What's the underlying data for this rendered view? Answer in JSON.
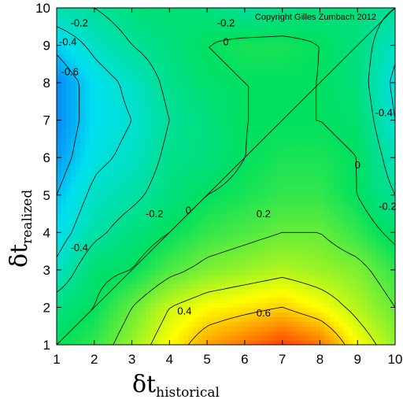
{
  "chart_data": {
    "type": "heatmap",
    "title": "",
    "copyright": "Copyright Gilles Zumbach 2012",
    "xlabel": {
      "symbol": "δt",
      "subscript": "historical"
    },
    "ylabel": {
      "symbol": "δt",
      "subscript": "realized"
    },
    "xlim": [
      1,
      10
    ],
    "ylim": [
      1,
      10
    ],
    "x_ticks": [
      "1",
      "2",
      "3",
      "4",
      "5",
      "6",
      "7",
      "8",
      "9",
      "10"
    ],
    "y_ticks": [
      "1",
      "2",
      "3",
      "4",
      "5",
      "6",
      "7",
      "8",
      "9",
      "10"
    ],
    "colormap": [
      "#1030ff",
      "#00e0f0",
      "#00e060",
      "#ffff00",
      "#ff1000"
    ],
    "color_range": [
      -1.0,
      1.0
    ],
    "x": [
      1,
      2,
      3,
      4,
      5,
      6,
      7,
      8,
      9,
      10
    ],
    "y": [
      1,
      2,
      3,
      4,
      5,
      6,
      7,
      8,
      9,
      10
    ],
    "z": [
      [
        0.0,
        0.1,
        0.3,
        0.5,
        0.7,
        0.8,
        0.9,
        0.8,
        0.5,
        0.3
      ],
      [
        -0.1,
        0.0,
        0.2,
        0.4,
        0.5,
        0.55,
        0.6,
        0.5,
        0.35,
        0.2
      ],
      [
        -0.35,
        -0.05,
        0.0,
        0.15,
        0.25,
        0.3,
        0.35,
        0.3,
        0.25,
        0.1
      ],
      [
        -0.5,
        -0.25,
        -0.1,
        0.0,
        0.1,
        0.15,
        0.2,
        0.2,
        0.1,
        -0.05
      ],
      [
        -0.6,
        -0.35,
        -0.25,
        -0.1,
        0.0,
        0.05,
        0.1,
        0.1,
        0.0,
        -0.2
      ],
      [
        -0.7,
        -0.45,
        -0.35,
        -0.15,
        -0.1,
        0.0,
        0.05,
        0.05,
        0.0,
        -0.3
      ],
      [
        -0.75,
        -0.5,
        -0.4,
        -0.2,
        -0.1,
        0.0,
        0.0,
        0.0,
        -0.05,
        -0.4
      ],
      [
        -0.75,
        -0.5,
        -0.35,
        -0.15,
        -0.05,
        0.0,
        0.0,
        0.0,
        -0.1,
        -0.45
      ],
      [
        -0.55,
        -0.35,
        -0.2,
        -0.1,
        0.0,
        0.05,
        0.05,
        0.0,
        -0.1,
        -0.35
      ],
      [
        -0.25,
        -0.2,
        -0.1,
        -0.05,
        -0.1,
        -0.2,
        -0.15,
        -0.1,
        -0.1,
        -0.2
      ]
    ],
    "contour_levels": [
      "-0.6",
      "-0.4",
      "-0.2",
      "0",
      "0.2",
      "0.4",
      "0.6"
    ],
    "contour_labels": [
      {
        "text": "-0.2",
        "x": 1.6,
        "y": 9.6
      },
      {
        "text": "-0.4",
        "x": 1.3,
        "y": 9.1
      },
      {
        "text": "-0.6",
        "x": 1.35,
        "y": 8.3
      },
      {
        "text": "-0.2",
        "x": 5.5,
        "y": 9.6
      },
      {
        "text": "0",
        "x": 5.5,
        "y": 9.1
      },
      {
        "text": "-0.4",
        "x": 9.7,
        "y": 7.2
      },
      {
        "text": "0",
        "x": 9.0,
        "y": 5.8
      },
      {
        "text": "-0.2",
        "x": 9.8,
        "y": 4.7
      },
      {
        "text": "-0.2",
        "x": 3.6,
        "y": 4.5
      },
      {
        "text": "0",
        "x": 4.5,
        "y": 4.6
      },
      {
        "text": "0.2",
        "x": 6.5,
        "y": 4.5
      },
      {
        "text": "-0.4",
        "x": 1.6,
        "y": 3.6
      },
      {
        "text": "0.4",
        "x": 4.4,
        "y": 1.9
      },
      {
        "text": "0.6",
        "x": 6.5,
        "y": 1.85
      }
    ],
    "diagonal_line": true,
    "grid": false,
    "legend": "none"
  }
}
